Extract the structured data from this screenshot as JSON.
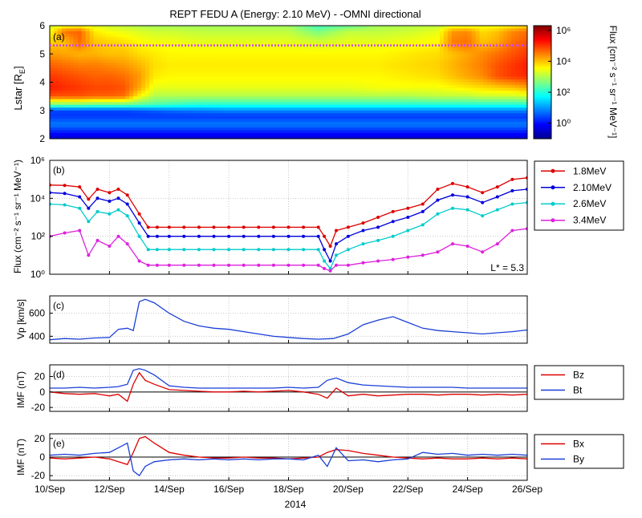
{
  "figure": {
    "title": "REPT FEDU A (Energy:     2.10 MeV) -   -OMNI directional",
    "x_tick_labels": [
      "10/Sep",
      "12/Sep",
      "14/Sep",
      "16/Sep",
      "18/Sep",
      "20/Sep",
      "22/Sep",
      "24/Sep",
      "26/Sep"
    ],
    "x_axis_label": "2014"
  },
  "chart_data": [
    {
      "panel": "(a)",
      "type": "heatmap",
      "title": "REPT FEDU A (Energy:     2.10 MeV) -   -OMNI directional",
      "ylabel": "Lstar [R",
      "ylabel_sub": "E",
      "ylabel_end": "]",
      "ylim": [
        2,
        6
      ],
      "yticks": [
        "2",
        "3",
        "4",
        "5",
        "6"
      ],
      "xlim_days": [
        10,
        26
      ],
      "colorbar": {
        "label": "Flux [cm⁻² s⁻¹ sr⁻¹ MeV⁻¹]",
        "scale": "log",
        "range": [
          0.1,
          2000000
        ],
        "ticks": [
          "10⁰",
          "10²",
          "10⁴",
          "10⁶"
        ],
        "colormap": [
          "#00008f",
          "#0000ff",
          "#0080ff",
          "#00ffff",
          "#80ff80",
          "#ffff00",
          "#ff8000",
          "#ff0000",
          "#800000"
        ]
      },
      "reference_line": {
        "y": 5.3,
        "color": "#cc44ff",
        "style": "dotted"
      },
      "time_columns_day": [
        10.0,
        10.5,
        11.0,
        11.5,
        12.0,
        12.5,
        13.0,
        13.5,
        14.0,
        15.0,
        16.0,
        17.0,
        18.0,
        19.0,
        20.0,
        21.0,
        22.0,
        23.0,
        23.5,
        24.0,
        24.5,
        25.0,
        25.5,
        26.0
      ],
      "lstar_rows": [
        2.0,
        2.5,
        2.8,
        3.0,
        3.2,
        3.5,
        3.8,
        4.2,
        4.6,
        5.0,
        5.4,
        5.8,
        6.0
      ],
      "log10_flux_grid": [
        [
          -0.5,
          -0.5,
          -0.5,
          -0.5,
          -0.5,
          -0.5,
          -0.5,
          -0.5,
          -0.5,
          -0.5,
          -0.5,
          -0.5,
          -0.5,
          -0.5,
          -0.5,
          -0.5,
          -0.5,
          -0.5,
          -0.5,
          -0.5,
          -0.5,
          -0.5,
          -0.5,
          -0.5
        ],
        [
          0.8,
          0.8,
          0.8,
          0.8,
          0.8,
          0.8,
          0.8,
          0.8,
          0.8,
          0.8,
          0.8,
          0.8,
          0.8,
          0.8,
          0.8,
          0.8,
          0.8,
          0.8,
          0.8,
          0.8,
          0.8,
          0.8,
          0.8,
          0.8
        ],
        [
          0.3,
          0.3,
          0.3,
          0.3,
          0.3,
          0.3,
          0.3,
          0.3,
          0.3,
          0.3,
          0.3,
          0.3,
          0.3,
          0.3,
          0.3,
          0.3,
          0.3,
          0.3,
          0.3,
          0.3,
          0.3,
          0.3,
          0.3,
          0.3
        ],
        [
          0.4,
          0.4,
          0.4,
          0.4,
          0.4,
          0.4,
          0.5,
          0.6,
          0.7,
          0.8,
          0.9,
          0.9,
          0.9,
          0.9,
          0.9,
          0.9,
          0.9,
          0.9,
          0.9,
          0.9,
          0.9,
          0.9,
          0.9,
          0.9
        ],
        [
          2.6,
          2.6,
          2.6,
          2.5,
          2.5,
          2.5,
          2.4,
          2.3,
          2.2,
          2.0,
          2.0,
          2.0,
          2.0,
          2.0,
          2.0,
          2.0,
          2.0,
          2.0,
          2.0,
          2.0,
          2.0,
          2.0,
          2.0,
          2.0
        ],
        [
          4.8,
          4.8,
          4.8,
          4.7,
          4.7,
          4.6,
          3.6,
          3.0,
          3.0,
          3.0,
          3.0,
          3.0,
          3.0,
          3.0,
          3.0,
          3.0,
          3.0,
          3.1,
          3.1,
          3.1,
          3.2,
          3.2,
          3.2,
          3.3
        ],
        [
          5.2,
          5.1,
          5.0,
          4.9,
          4.9,
          4.8,
          4.2,
          3.4,
          3.4,
          3.4,
          3.4,
          3.4,
          3.4,
          3.4,
          3.4,
          3.5,
          3.5,
          3.5,
          3.6,
          3.7,
          3.8,
          3.9,
          4.0,
          4.2
        ],
        [
          5.0,
          4.9,
          4.8,
          4.7,
          4.7,
          4.6,
          4.3,
          3.7,
          3.6,
          3.6,
          3.6,
          3.6,
          3.6,
          3.6,
          3.6,
          3.6,
          3.7,
          3.8,
          4.0,
          4.2,
          4.4,
          4.8,
          5.0,
          5.1
        ],
        [
          4.7,
          4.6,
          4.5,
          4.5,
          4.4,
          4.3,
          4.1,
          3.8,
          3.7,
          3.7,
          3.7,
          3.7,
          3.7,
          3.7,
          3.7,
          3.7,
          3.8,
          3.9,
          4.1,
          4.3,
          4.5,
          4.8,
          5.0,
          5.2
        ],
        [
          4.3,
          4.2,
          4.1,
          4.1,
          4.0,
          4.0,
          3.8,
          3.7,
          3.6,
          3.6,
          3.6,
          3.6,
          3.6,
          3.6,
          3.6,
          3.6,
          3.7,
          3.8,
          4.0,
          4.2,
          4.4,
          4.6,
          4.8,
          5.0
        ],
        [
          3.9,
          4.0,
          4.6,
          4.0,
          3.9,
          3.8,
          3.6,
          3.5,
          3.5,
          3.4,
          3.4,
          3.4,
          3.4,
          3.3,
          3.4,
          3.4,
          3.5,
          3.6,
          4.5,
          4.6,
          4.0,
          4.2,
          4.6,
          4.8
        ],
        [
          3.5,
          4.6,
          4.7,
          3.7,
          3.5,
          3.4,
          3.3,
          3.2,
          3.2,
          3.1,
          3.1,
          3.1,
          3.1,
          2.6,
          3.1,
          3.1,
          3.2,
          3.4,
          4.3,
          4.4,
          3.8,
          4.0,
          4.4,
          4.6
        ],
        [
          3.2,
          3.4,
          3.5,
          3.3,
          3.2,
          3.1,
          3.0,
          2.9,
          2.9,
          2.9,
          2.9,
          2.9,
          2.9,
          2.2,
          2.4,
          2.9,
          3.0,
          3.1,
          3.3,
          3.4,
          3.4,
          3.5,
          3.6,
          3.8
        ]
      ]
    },
    {
      "panel": "(b)",
      "type": "line",
      "ylabel": "Flux (cm⁻² s⁻¹ sr⁻¹ MeV⁻¹)",
      "yscale": "log",
      "ylim": [
        1,
        1000000
      ],
      "yticks": [
        "10⁰",
        "10²",
        "10⁴",
        "10⁶"
      ],
      "annotation": "L* = 5.3",
      "x_days": [
        10,
        10.5,
        11,
        11.3,
        11.6,
        12,
        12.3,
        12.6,
        13,
        13.3,
        13.6,
        14,
        14.5,
        15,
        15.5,
        16,
        16.5,
        17,
        17.5,
        18,
        18.5,
        19,
        19.2,
        19.4,
        19.6,
        20,
        20.5,
        21,
        21.5,
        22,
        22.5,
        23,
        23.5,
        24,
        24.5,
        25,
        25.5,
        26
      ],
      "series": [
        {
          "name": "1.8MeV",
          "color": "#dd0000",
          "values": [
            50000,
            48000,
            40000,
            9000,
            30000,
            20000,
            30000,
            15000,
            1500,
            300,
            300,
            300,
            300,
            300,
            300,
            300,
            300,
            300,
            300,
            300,
            300,
            300,
            100,
            30,
            200,
            300,
            500,
            1000,
            2000,
            3000,
            5000,
            30000,
            60000,
            40000,
            20000,
            40000,
            100000,
            120000
          ]
        },
        {
          "name": "2.10MeV",
          "color": "#0000dd",
          "values": [
            20000,
            18000,
            12000,
            3000,
            10000,
            7000,
            10000,
            5000,
            500,
            100,
            100,
            100,
            100,
            100,
            100,
            100,
            100,
            100,
            100,
            100,
            100,
            100,
            20,
            5,
            40,
            100,
            200,
            300,
            600,
            1000,
            2000,
            8000,
            15000,
            12000,
            6000,
            12000,
            25000,
            30000
          ]
        },
        {
          "name": "2.6MeV",
          "color": "#00cccc",
          "values": [
            5000,
            4500,
            3000,
            600,
            2000,
            1500,
            2500,
            1200,
            100,
            20,
            20,
            20,
            20,
            20,
            20,
            20,
            20,
            20,
            20,
            20,
            20,
            20,
            5,
            2,
            10,
            20,
            40,
            60,
            100,
            200,
            400,
            1500,
            3000,
            2500,
            1200,
            2500,
            5000,
            6000
          ]
        },
        {
          "name": "3.4MeV",
          "color": "#dd22dd",
          "values": [
            100,
            150,
            200,
            10,
            60,
            30,
            100,
            40,
            5,
            3,
            3,
            3,
            3,
            3,
            3,
            3,
            3,
            3,
            3,
            3,
            3,
            3,
            2,
            1.5,
            3,
            3,
            4,
            5,
            6,
            8,
            10,
            15,
            40,
            30,
            15,
            40,
            200,
            250
          ]
        }
      ]
    },
    {
      "panel": "(c)",
      "type": "line",
      "ylabel": "Vp [km/s]",
      "ylim": [
        340,
        750
      ],
      "yticks": [
        "400",
        "600"
      ],
      "x_days": [
        10,
        10.5,
        11,
        11.5,
        12,
        12.3,
        12.6,
        12.8,
        13,
        13.2,
        13.5,
        14,
        14.5,
        15,
        15.5,
        16,
        16.5,
        17,
        17.5,
        18,
        18.5,
        19,
        19.5,
        20,
        20.5,
        21,
        21.5,
        22,
        22.5,
        23,
        23.5,
        24,
        24.5,
        25,
        25.5,
        26
      ],
      "series": [
        {
          "name": "",
          "color": "#1a3fd6",
          "values": [
            370,
            380,
            375,
            385,
            390,
            460,
            470,
            450,
            700,
            720,
            690,
            600,
            530,
            490,
            470,
            460,
            440,
            420,
            400,
            390,
            380,
            375,
            380,
            420,
            500,
            540,
            570,
            520,
            470,
            450,
            440,
            430,
            420,
            430,
            440,
            455
          ]
        }
      ]
    },
    {
      "panel": "(d)",
      "type": "line",
      "ylabel": "IMF (nT)",
      "ylim": [
        -25,
        35
      ],
      "yticks": [
        "-20",
        "0",
        "20"
      ],
      "x_days": [
        10,
        10.5,
        11,
        11.5,
        12,
        12.3,
        12.6,
        12.8,
        13,
        13.2,
        13.5,
        14,
        14.5,
        15,
        15.5,
        16,
        16.5,
        17,
        17.5,
        18,
        18.5,
        19,
        19.3,
        19.6,
        20,
        20.5,
        21,
        21.5,
        22,
        22.5,
        23,
        23.5,
        24,
        24.5,
        25,
        25.5,
        26
      ],
      "series": [
        {
          "name": "Bz",
          "color": "#dd0000",
          "values": [
            0,
            -2,
            -3,
            -2,
            -5,
            -3,
            -12,
            10,
            25,
            15,
            10,
            3,
            2,
            1,
            0,
            0,
            1,
            0,
            1,
            2,
            0,
            -3,
            -8,
            5,
            -5,
            -3,
            -5,
            -4,
            -3,
            -3,
            -4,
            -3,
            -3,
            -4,
            -3,
            -4,
            -3
          ]
        },
        {
          "name": "Bt",
          "color": "#1a3fd6",
          "values": [
            5,
            5,
            6,
            5,
            6,
            7,
            10,
            28,
            30,
            28,
            22,
            8,
            6,
            5,
            5,
            5,
            5,
            5,
            5,
            6,
            5,
            6,
            15,
            18,
            12,
            9,
            8,
            7,
            6,
            6,
            6,
            6,
            5,
            5,
            5,
            5,
            5
          ]
        }
      ]
    },
    {
      "panel": "(e)",
      "type": "line",
      "ylabel": "IMF (nT)",
      "ylim": [
        -25,
        25
      ],
      "yticks": [
        "-20",
        "0",
        "20"
      ],
      "x_days": [
        10,
        10.5,
        11,
        11.5,
        12,
        12.3,
        12.6,
        12.8,
        13,
        13.2,
        13.5,
        14,
        14.5,
        15,
        15.5,
        16,
        16.5,
        17,
        17.5,
        18,
        18.5,
        19,
        19.3,
        19.6,
        20,
        20.5,
        21,
        21.5,
        22,
        22.5,
        23,
        23.5,
        24,
        24.5,
        25,
        25.5,
        26
      ],
      "series": [
        {
          "name": "Bx",
          "color": "#dd0000",
          "values": [
            -1,
            -2,
            -1,
            0,
            -2,
            -5,
            -8,
            5,
            20,
            22,
            15,
            5,
            2,
            0,
            -1,
            -1,
            0,
            -1,
            -1,
            -2,
            -1,
            0,
            5,
            8,
            7,
            4,
            2,
            0,
            -1,
            -2,
            -1,
            -2,
            -2,
            -1,
            -2,
            -1,
            -2
          ]
        },
        {
          "name": "By",
          "color": "#1a3fd6",
          "values": [
            2,
            3,
            2,
            4,
            5,
            10,
            15,
            -15,
            -20,
            -10,
            -5,
            -3,
            -2,
            -3,
            -2,
            -3,
            -2,
            -3,
            -2,
            -2,
            -3,
            2,
            -10,
            10,
            -4,
            -3,
            -5,
            -3,
            -2,
            5,
            3,
            4,
            2,
            3,
            2,
            3,
            2
          ]
        }
      ]
    }
  ]
}
